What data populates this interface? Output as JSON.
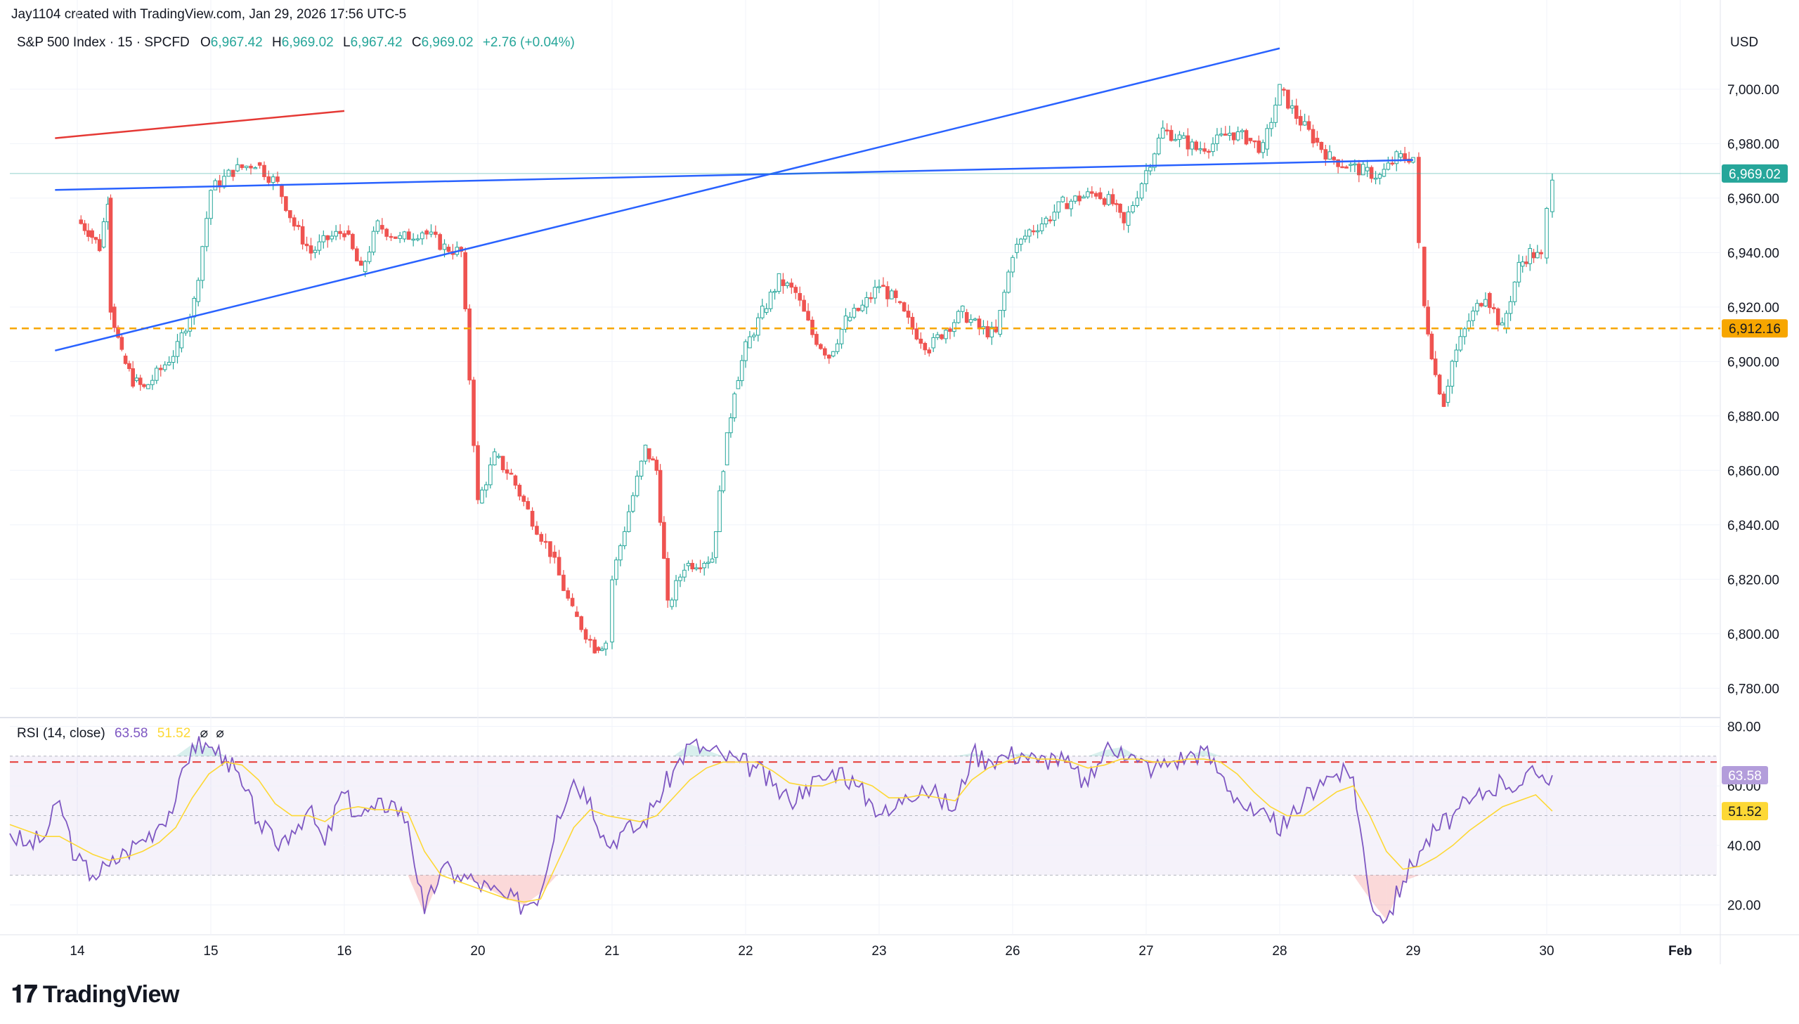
{
  "attribution": "Jay1104 created with TradingView.com, Jan 29, 2026 17:56 UTC-5",
  "legend": {
    "symbol": "S&P 500 Index · 15 · SPCFD",
    "o_label": "O",
    "o_value": "6,967.42",
    "h_label": "H",
    "h_value": "6,969.02",
    "l_label": "L",
    "l_value": "6,967.42",
    "c_label": "C",
    "c_value": "6,969.02",
    "change": "+2.76 (+0.04%)"
  },
  "currency": "USD",
  "price_badge": "6,969.02",
  "level_badge": "6,912.16",
  "rsi": {
    "title": "RSI (14, close)",
    "value": "63.58",
    "ma_value": "51.52",
    "extra1": "⌀",
    "extra2": "⌀"
  },
  "brand": "TradingView",
  "brand_icon": "tradingview-logo-icon",
  "colors": {
    "up": "#26a69a",
    "down": "#ef5350",
    "level": "#f7a600",
    "trend_blue": "#2962ff",
    "trend_red": "#e53935",
    "rsi_line": "#7e57c2",
    "rsi_ma": "#fdd835"
  },
  "chart_data": [
    {
      "type": "candlestick",
      "title": "S&P 500 Index · 15 · SPCFD",
      "y_axis_ticks": [
        "7,000.00",
        "6,980.00",
        "6,960.00",
        "6,940.00",
        "6,920.00",
        "6,900.00",
        "6,880.00",
        "6,860.00",
        "6,840.00",
        "6,820.00",
        "6,800.00",
        "6,780.00"
      ],
      "ylim": [
        6770,
        7025
      ],
      "x_tick_labels": [
        "14",
        "15",
        "16",
        "20",
        "21",
        "22",
        "23",
        "26",
        "27",
        "28",
        "29",
        "30",
        "Feb"
      ],
      "close_path": [
        {
          "t": "14 00:00",
          "close": 6952
        },
        {
          "t": "14 02:00",
          "close": 6948
        },
        {
          "t": "14 04:00",
          "close": 6942
        },
        {
          "t": "14 05:30",
          "close": 6960
        },
        {
          "t": "14 06:00",
          "close": 6920
        },
        {
          "t": "14 08:00",
          "close": 6902
        },
        {
          "t": "14 10:00",
          "close": 6893
        },
        {
          "t": "14 12:00",
          "close": 6890
        },
        {
          "t": "14 15:00",
          "close": 6897
        },
        {
          "t": "14 18:00",
          "close": 6905
        },
        {
          "t": "14 21:00",
          "close": 6922
        },
        {
          "t": "15 00:00",
          "close": 6963
        },
        {
          "t": "15 04:00",
          "close": 6970
        },
        {
          "t": "15 08:00",
          "close": 6973
        },
        {
          "t": "15 12:00",
          "close": 6965
        },
        {
          "t": "15 15:00",
          "close": 6950
        },
        {
          "t": "15 18:00",
          "close": 6940
        },
        {
          "t": "15 21:00",
          "close": 6945
        },
        {
          "t": "16 00:00",
          "close": 6948
        },
        {
          "t": "16 03:00",
          "close": 6933
        },
        {
          "t": "16 06:00",
          "close": 6950
        },
        {
          "t": "16 10:00",
          "close": 6945
        },
        {
          "t": "16 14:00",
          "close": 6948
        },
        {
          "t": "16 18:00",
          "close": 6942
        },
        {
          "t": "16 21:00",
          "close": 6940
        },
        {
          "t": "20 00:00",
          "close": 6848
        },
        {
          "t": "20 03:00",
          "close": 6865
        },
        {
          "t": "20 06:00",
          "close": 6858
        },
        {
          "t": "20 09:00",
          "close": 6845
        },
        {
          "t": "20 13:00",
          "close": 6830
        },
        {
          "t": "20 17:00",
          "close": 6808
        },
        {
          "t": "20 21:00",
          "close": 6795
        },
        {
          "t": "20 23:00",
          "close": 6797
        },
        {
          "t": "21 00:00",
          "close": 6820
        },
        {
          "t": "21 03:00",
          "close": 6845
        },
        {
          "t": "21 06:00",
          "close": 6868
        },
        {
          "t": "21 08:00",
          "close": 6860
        },
        {
          "t": "21 10:00",
          "close": 6810
        },
        {
          "t": "21 13:00",
          "close": 6825
        },
        {
          "t": "21 18:00",
          "close": 6828
        },
        {
          "t": "21 20:00",
          "close": 6862
        },
        {
          "t": "21 22:00",
          "close": 6890
        },
        {
          "t": "22 00:00",
          "close": 6905
        },
        {
          "t": "22 03:00",
          "close": 6918
        },
        {
          "t": "22 06:00",
          "close": 6930
        },
        {
          "t": "22 09:00",
          "close": 6925
        },
        {
          "t": "22 12:00",
          "close": 6910
        },
        {
          "t": "22 15:00",
          "close": 6902
        },
        {
          "t": "22 18:00",
          "close": 6915
        },
        {
          "t": "22 21:00",
          "close": 6920
        },
        {
          "t": "23 00:00",
          "close": 6928
        },
        {
          "t": "23 03:00",
          "close": 6922
        },
        {
          "t": "23 06:00",
          "close": 6912
        },
        {
          "t": "23 09:00",
          "close": 6905
        },
        {
          "t": "23 12:00",
          "close": 6912
        },
        {
          "t": "23 15:00",
          "close": 6918
        },
        {
          "t": "23 18:00",
          "close": 6912
        },
        {
          "t": "23 21:00",
          "close": 6910
        },
        {
          "t": "26 00:00",
          "close": 6940
        },
        {
          "t": "26 03:00",
          "close": 6948
        },
        {
          "t": "26 06:00",
          "close": 6952
        },
        {
          "t": "26 09:00",
          "close": 6958
        },
        {
          "t": "26 12:00",
          "close": 6960
        },
        {
          "t": "26 15:00",
          "close": 6962
        },
        {
          "t": "26 18:00",
          "close": 6958
        },
        {
          "t": "26 20:00",
          "close": 6950
        },
        {
          "t": "27 00:00",
          "close": 6970
        },
        {
          "t": "27 03:00",
          "close": 6985
        },
        {
          "t": "27 06:00",
          "close": 6982
        },
        {
          "t": "27 09:00",
          "close": 6978
        },
        {
          "t": "27 12:00",
          "close": 6980
        },
        {
          "t": "27 15:00",
          "close": 6984
        },
        {
          "t": "27 18:00",
          "close": 6982
        },
        {
          "t": "27 21:00",
          "close": 6978
        },
        {
          "t": "28 00:00",
          "close": 7000
        },
        {
          "t": "28 03:00",
          "close": 6990
        },
        {
          "t": "28 06:00",
          "close": 6982
        },
        {
          "t": "28 09:00",
          "close": 6975
        },
        {
          "t": "28 12:00",
          "close": 6972
        },
        {
          "t": "28 15:00",
          "close": 6970
        },
        {
          "t": "28 18:00",
          "close": 6968
        },
        {
          "t": "28 21:00",
          "close": 6975
        },
        {
          "t": "29 00:00",
          "close": 6975
        },
        {
          "t": "29 01:00",
          "close": 6942
        },
        {
          "t": "29 02:00",
          "close": 6920
        },
        {
          "t": "29 04:00",
          "close": 6895
        },
        {
          "t": "29 05:30",
          "close": 6885
        },
        {
          "t": "29 07:00",
          "close": 6900
        },
        {
          "t": "29 10:00",
          "close": 6915
        },
        {
          "t": "29 13:00",
          "close": 6925
        },
        {
          "t": "29 16:00",
          "close": 6912
        },
        {
          "t": "29 19:00",
          "close": 6935
        },
        {
          "t": "29 21:00",
          "close": 6940
        },
        {
          "t": "29 23:00",
          "close": 6938
        },
        {
          "t": "30 00:00",
          "close": 6955
        },
        {
          "t": "30 01:00",
          "close": 6969.02
        }
      ],
      "horizontal_levels": [
        6912.16
      ],
      "trendlines": [
        {
          "color": "trend_red",
          "from": {
            "t": "13 20:00",
            "price": 6982
          },
          "to": {
            "t": "16 00:00",
            "price": 6992
          }
        },
        {
          "color": "trend_blue",
          "from": {
            "t": "13 20:00",
            "price": 6963
          },
          "to": {
            "t": "29 00:00",
            "price": 6974
          }
        },
        {
          "color": "trend_blue",
          "from": {
            "t": "13 20:00",
            "price": 6904
          },
          "to": {
            "t": "28 00:00",
            "price": 7015
          }
        }
      ]
    },
    {
      "type": "line",
      "title": "RSI (14, close)",
      "y_axis_ticks": [
        "80.00",
        "60.00",
        "40.00",
        "20.00"
      ],
      "ylim": [
        10,
        82
      ],
      "bands": [
        30,
        50,
        70
      ],
      "overbought_line": 68,
      "series": [
        {
          "name": "RSI",
          "values": [
            44,
            40,
            42,
            55,
            35,
            30,
            33,
            38,
            42,
            47,
            55,
            74,
            73,
            70,
            60,
            48,
            40,
            45,
            52,
            40,
            58,
            50,
            52,
            55,
            48,
            17,
            32,
            30,
            28,
            25,
            22,
            20,
            24,
            50,
            62,
            56,
            40,
            45,
            46,
            55,
            65,
            74,
            72,
            70,
            68,
            66,
            60,
            55,
            60,
            62,
            66,
            60,
            54,
            50,
            57,
            60,
            56,
            52,
            71,
            69,
            70,
            71,
            68,
            70,
            66,
            60,
            72,
            73,
            68,
            66,
            68,
            70,
            72,
            64,
            56,
            50,
            48,
            46,
            55,
            62,
            64,
            63,
            22,
            15,
            28,
            38,
            45,
            50,
            54,
            58,
            62,
            60,
            64,
            63.58
          ],
          "last": 63.58
        },
        {
          "name": "MA",
          "values": [
            47,
            45,
            43,
            43,
            40,
            37,
            35,
            36,
            38,
            41,
            46,
            56,
            64,
            68,
            67,
            62,
            54,
            50,
            50,
            48,
            52,
            53,
            52,
            52,
            51,
            38,
            30,
            28,
            26,
            24,
            22,
            21,
            22,
            34,
            46,
            52,
            50,
            49,
            48,
            50,
            56,
            62,
            66,
            68,
            68,
            68,
            65,
            61,
            60,
            60,
            62,
            62,
            60,
            56,
            56,
            57,
            56,
            55,
            62,
            66,
            68,
            70,
            69,
            69,
            68,
            66,
            67,
            69,
            69,
            68,
            68,
            69,
            69,
            68,
            64,
            58,
            53,
            50,
            50,
            54,
            58,
            60,
            50,
            38,
            32,
            33,
            36,
            40,
            45,
            49,
            53,
            55,
            57,
            51.52
          ],
          "last": 51.52
        }
      ]
    }
  ]
}
